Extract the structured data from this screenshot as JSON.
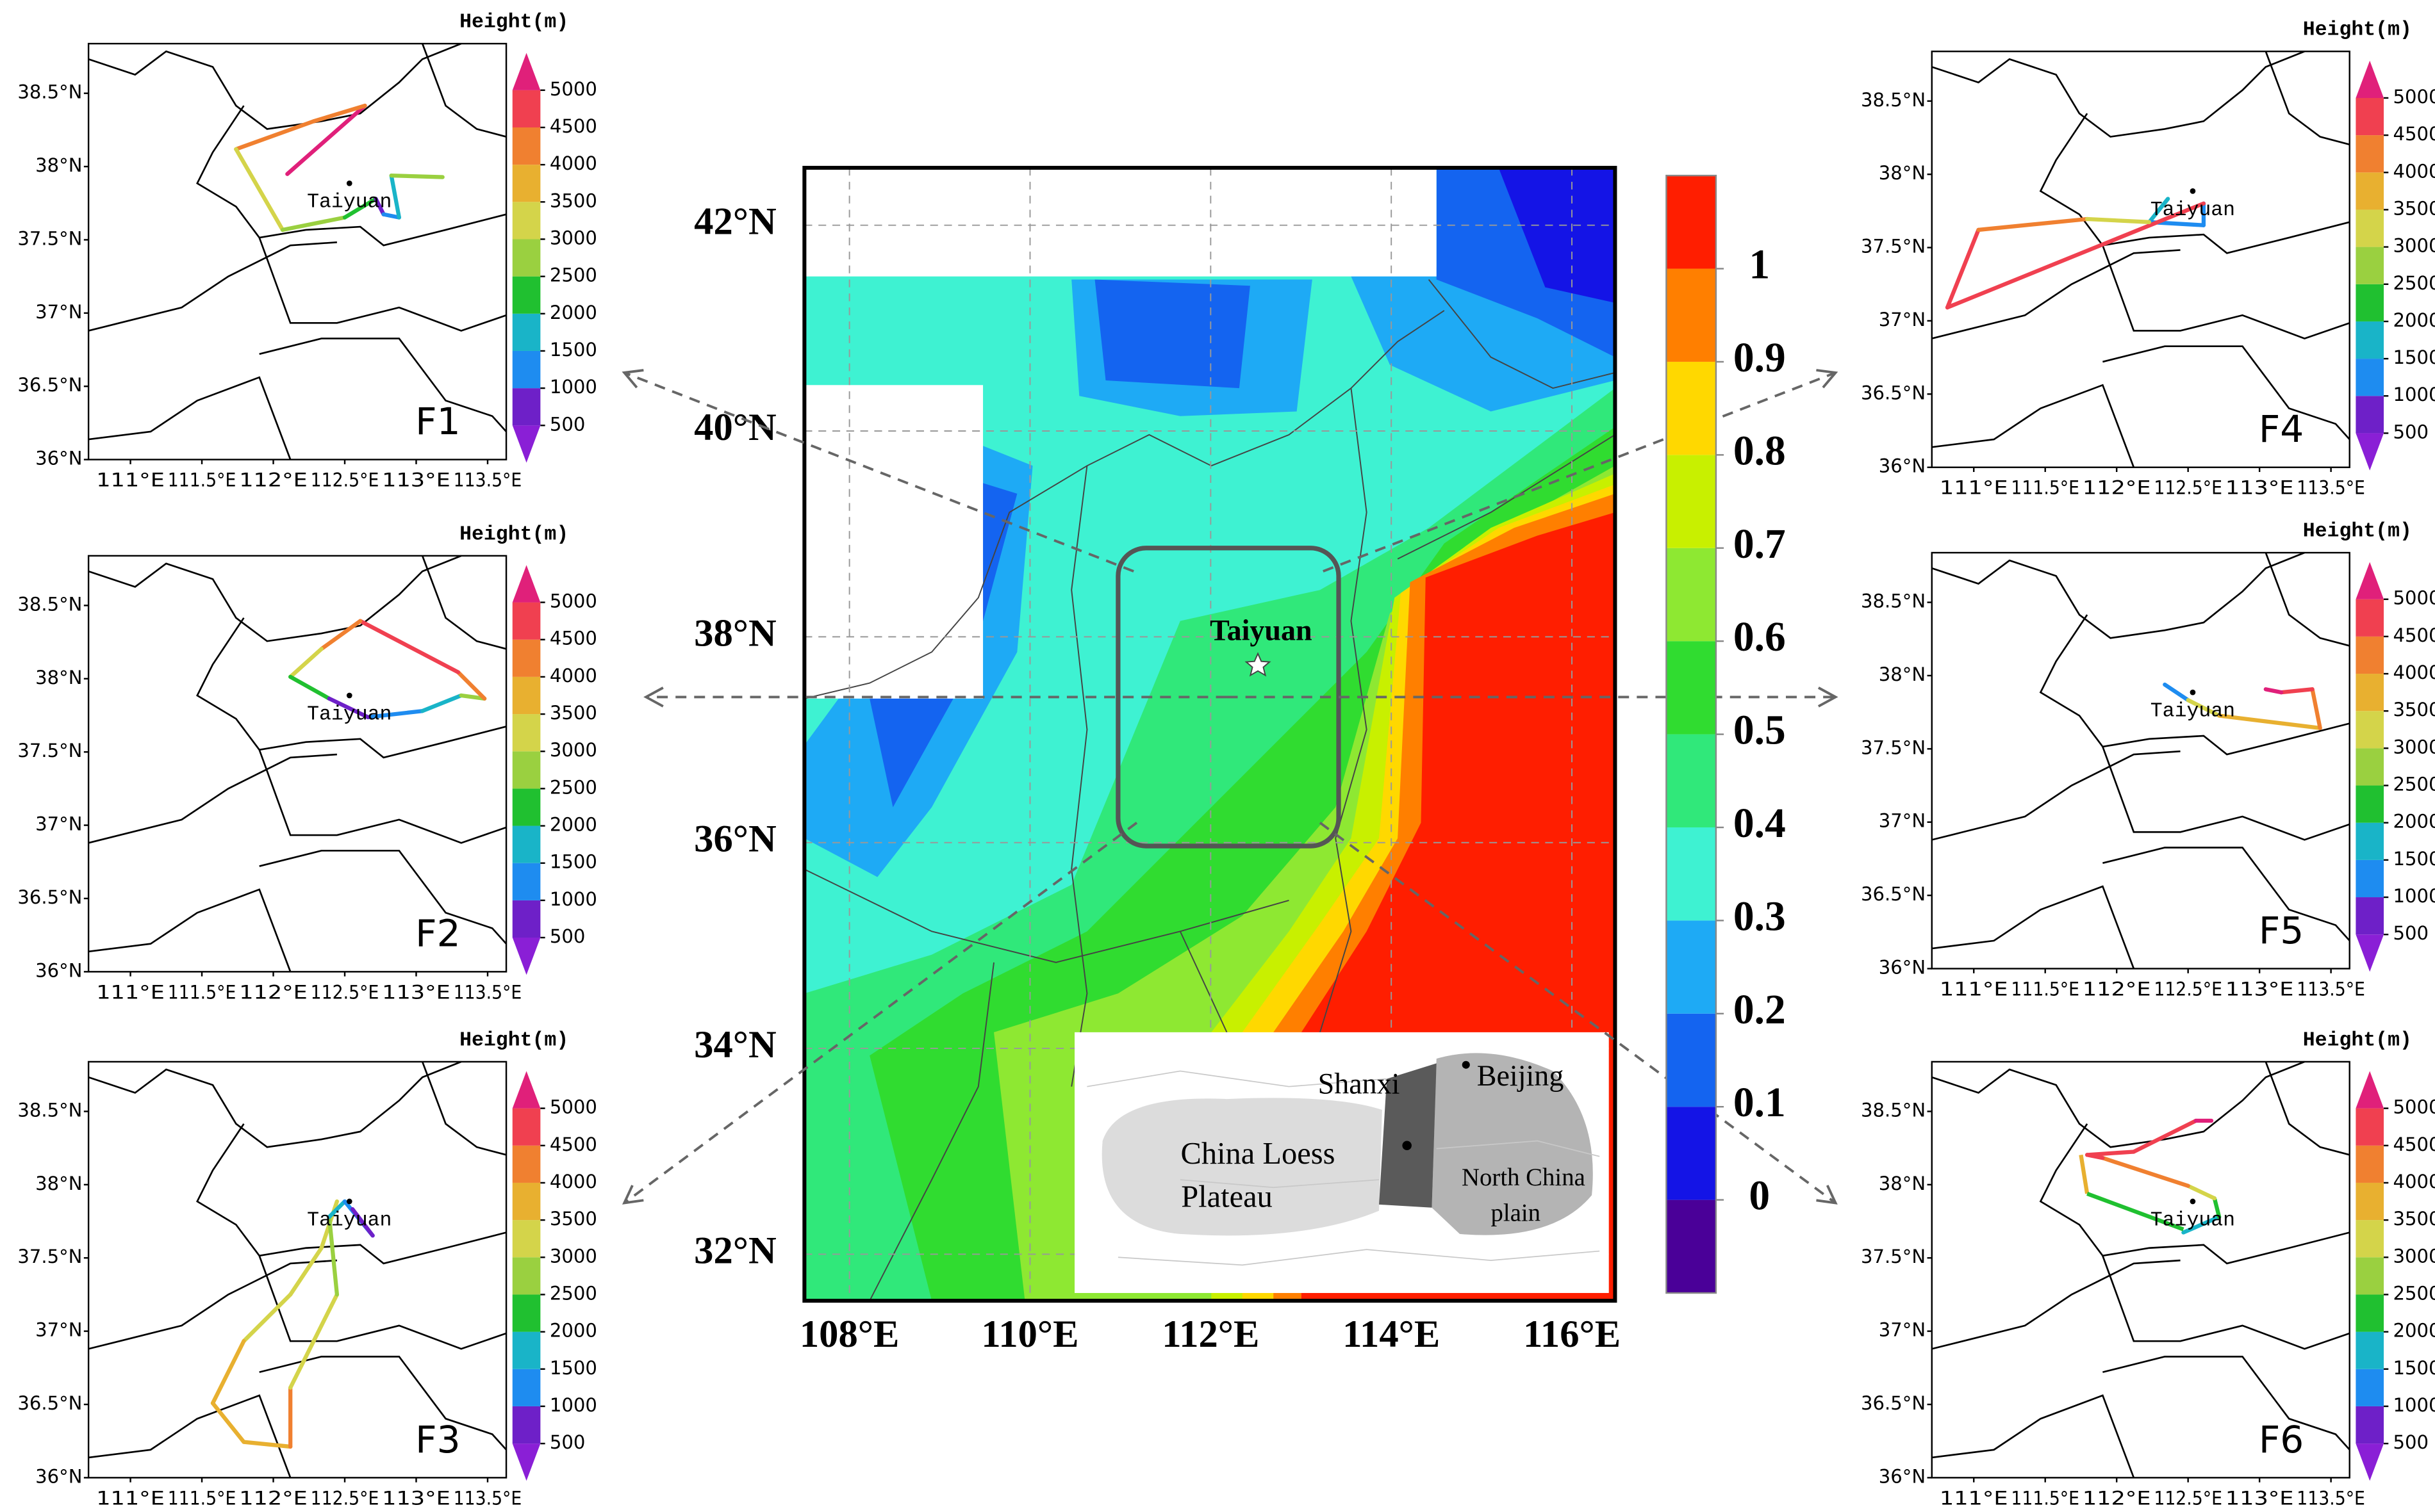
{
  "center_map": {
    "lat_labels": [
      "42°N",
      "40°N",
      "38°N",
      "36°N",
      "34°N",
      "32°N"
    ],
    "lon_labels": [
      "108°E",
      "110°E",
      "112°E",
      "114°E",
      "116°E"
    ],
    "city": "Taiyuan",
    "colorbar": {
      "ticks": [
        0,
        0.1,
        0.2,
        0.3,
        0.4,
        0.5,
        0.6,
        0.7,
        0.8,
        0.9,
        1
      ],
      "colors": [
        "#4a0098",
        "#1414e6",
        "#1464f0",
        "#1eaaf5",
        "#3ef2d2",
        "#30e87a",
        "#30dc30",
        "#8ee832",
        "#c8f000",
        "#ffd800",
        "#ff7f00",
        "#ff1e00"
      ]
    },
    "inset": {
      "shanxi": "Shanxi",
      "beijing": "Beijing",
      "loess_plateau": [
        "China Loess",
        "Plateau"
      ],
      "north_china_plain": [
        "North China",
        "plain"
      ]
    }
  },
  "trajectory_panels": {
    "colorbar_title": "Height(m)",
    "colorbar_ticks": [
      500,
      1000,
      1500,
      2000,
      2500,
      3000,
      3500,
      4000,
      4500,
      5000
    ],
    "colorbar_colors": [
      "#8a1fd6",
      "#6e20c8",
      "#1e8cf0",
      "#19b4c8",
      "#20c030",
      "#9ad040",
      "#d4d44a",
      "#e8b030",
      "#f08030",
      "#f04050",
      "#e0207a"
    ],
    "lat_labels": [
      "38.5°N",
      "38°N",
      "37.5°N",
      "37°N",
      "36.5°N",
      "36°N"
    ],
    "lon_labels": [
      "111°E",
      "111.5°E",
      "112°E",
      "112.5°E",
      "113°E",
      "113.5°E"
    ],
    "city": "Taiyuan",
    "panels": [
      {
        "title": "F1"
      },
      {
        "title": "F2"
      },
      {
        "title": "F3"
      },
      {
        "title": "F4"
      },
      {
        "title": "F5"
      },
      {
        "title": "F6"
      }
    ]
  }
}
